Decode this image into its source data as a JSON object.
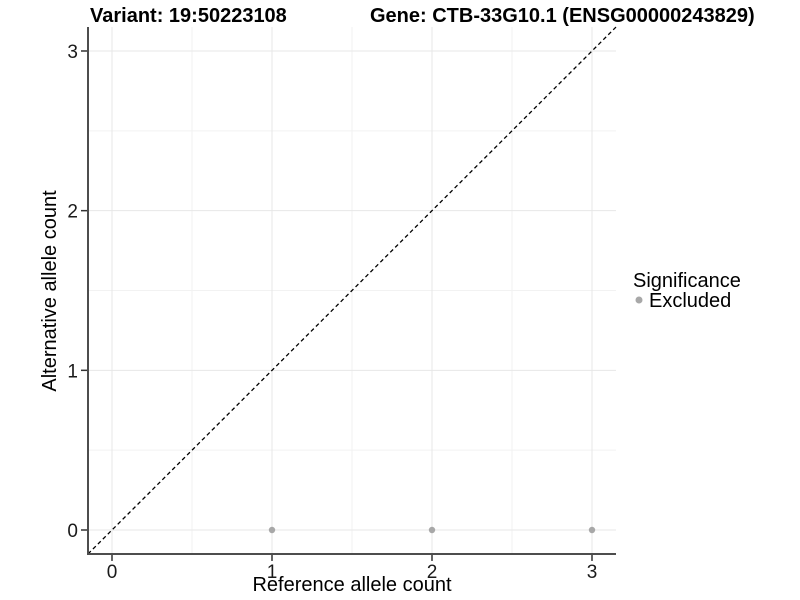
{
  "titles": {
    "variant": "Variant: 19:50223108",
    "gene": "Gene: CTB-33G10.1 (ENSG00000243829)"
  },
  "axes": {
    "x_label": "Reference allele count",
    "y_label": "Alternative allele count",
    "x_tick_labels": [
      "0",
      "1",
      "2",
      "3"
    ],
    "y_tick_labels": [
      "0",
      "1",
      "2",
      "3"
    ]
  },
  "legend": {
    "title": "Significance",
    "items": [
      {
        "label": "Excluded",
        "color": "#a8a8a8"
      }
    ]
  },
  "colors": {
    "point": "#a8a8a8",
    "grid_major": "#e7e7e7",
    "grid_minor": "#f2f2f2",
    "axis_line": "#4d4d4d",
    "tick_mark": "#333333",
    "reference_line": "#000000",
    "background": "#ffffff"
  },
  "chart_data": {
    "type": "scatter",
    "title": "Variant: 19:50223108   Gene: CTB-33G10.1 (ENSG00000243829)",
    "xlabel": "Reference allele count",
    "ylabel": "Alternative allele count",
    "xlim": [
      -0.15,
      3.15
    ],
    "ylim": [
      -0.15,
      3.15
    ],
    "x_ticks": [
      0,
      1,
      2,
      3
    ],
    "y_ticks": [
      0,
      1,
      2,
      3
    ],
    "x_minor_ticks": [
      0.5,
      1.5,
      2.5
    ],
    "y_minor_ticks": [
      0.5,
      1.5,
      2.5
    ],
    "grid": "major+minor",
    "legend_position": "right",
    "series": [
      {
        "name": "Excluded",
        "color": "#a8a8a8",
        "points": [
          {
            "x": 1,
            "y": 0
          },
          {
            "x": 2,
            "y": 0
          },
          {
            "x": 3,
            "y": 0
          }
        ]
      }
    ],
    "reference_line": {
      "style": "dashed",
      "equation": "y = x",
      "from": [
        -0.15,
        -0.15
      ],
      "to": [
        3.15,
        3.15
      ]
    }
  }
}
